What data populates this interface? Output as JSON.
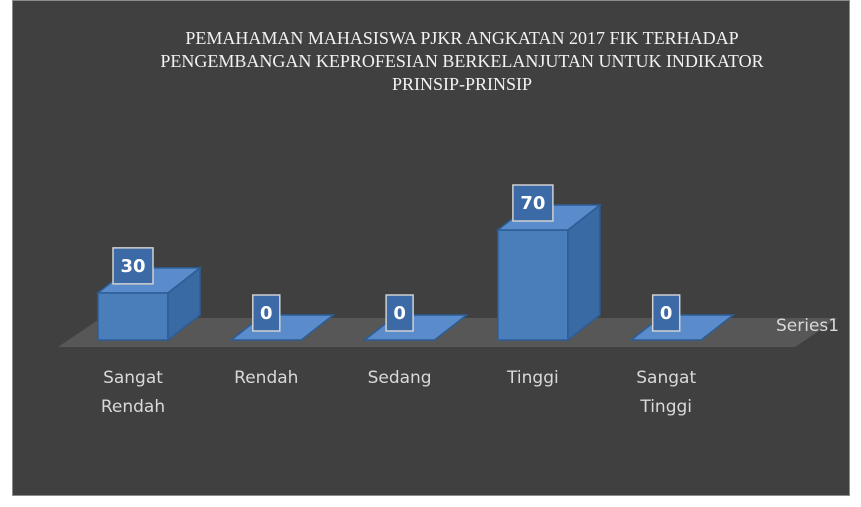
{
  "chart_data": {
    "type": "bar3d",
    "title": "PEMAHAMAN MAHASISWA PJKR ANGKATAN 2017 FIK TERHADAP PENGEMBANGAN KEPROFESIAN BERKELANJUTAN UNTUK INDIKATOR PRINSIP-PRINSIP",
    "categories": [
      "Sangat Rendah",
      "Rendah",
      "Sedang",
      "Tinggi",
      "Sangat Tinggi"
    ],
    "series": [
      {
        "name": "Series1",
        "color": "#4a7ebb",
        "values": [
          30,
          0,
          0,
          70,
          0
        ]
      }
    ]
  }
}
